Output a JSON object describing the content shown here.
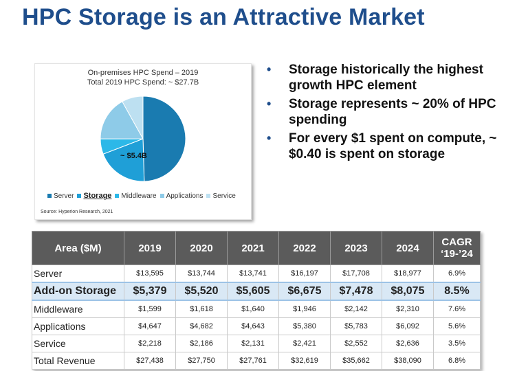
{
  "slide_title": "HPC Storage is an Attractive Market",
  "chart_data": {
    "type": "pie",
    "title": "On-premises HPC Spend – 2019",
    "subtitle": "Total 2019 HPC Spend: ~ $27.7B",
    "slices": [
      {
        "name": "Server",
        "value": 13595,
        "color": "#1a7bb0"
      },
      {
        "name": "Storage",
        "value": 5379,
        "color": "#1f9fd7"
      },
      {
        "name": "Middleware",
        "value": 1599,
        "color": "#2cb8e8"
      },
      {
        "name": "Applications",
        "value": 4647,
        "color": "#8ecbe8"
      },
      {
        "name": "Service",
        "value": 2218,
        "color": "#bde0f1"
      }
    ],
    "annotation": "~ $5.4B",
    "source": "Source: Hyperion Research, 2021"
  },
  "bullets": [
    "Storage historically the highest growth HPC element",
    "Storage represents ~ 20% of HPC spending",
    "For every $1 spent on compute, ~ $0.40 is spent on storage"
  ],
  "bullet_marker": "•",
  "table": {
    "header_area": "Area ($M)",
    "years": [
      "2019",
      "2020",
      "2021",
      "2022",
      "2023",
      "2024"
    ],
    "cagr_line1": "CAGR",
    "cagr_line2": "‘19-’24",
    "rows": [
      {
        "area": "Server",
        "values": [
          "$13,595",
          "$13,744",
          "$13,741",
          "$16,197",
          "$17,708",
          "$18,977"
        ],
        "cagr": "6.9%"
      },
      {
        "area": "Add-on Storage",
        "values": [
          "$5,379",
          "$5,520",
          "$5,605",
          "$6,675",
          "$7,478",
          "$8,075"
        ],
        "cagr": "8.5%"
      },
      {
        "area": "Middleware",
        "values": [
          "$1,599",
          "$1,618",
          "$1,640",
          "$1,946",
          "$2,142",
          "$2,310"
        ],
        "cagr": "7.6%"
      },
      {
        "area": "Applications",
        "values": [
          "$4,647",
          "$4,682",
          "$4,643",
          "$5,380",
          "$5,783",
          "$6,092"
        ],
        "cagr": "5.6%"
      },
      {
        "area": "Service",
        "values": [
          "$2,218",
          "$2,186",
          "$2,131",
          "$2,421",
          "$2,552",
          "$2,636"
        ],
        "cagr": "3.5%"
      },
      {
        "area": "Total Revenue",
        "values": [
          "$27,438",
          "$27,750",
          "$27,761",
          "$32,619",
          "$35,662",
          "$38,090"
        ],
        "cagr": "6.8%"
      }
    ],
    "highlight_row": 1
  }
}
